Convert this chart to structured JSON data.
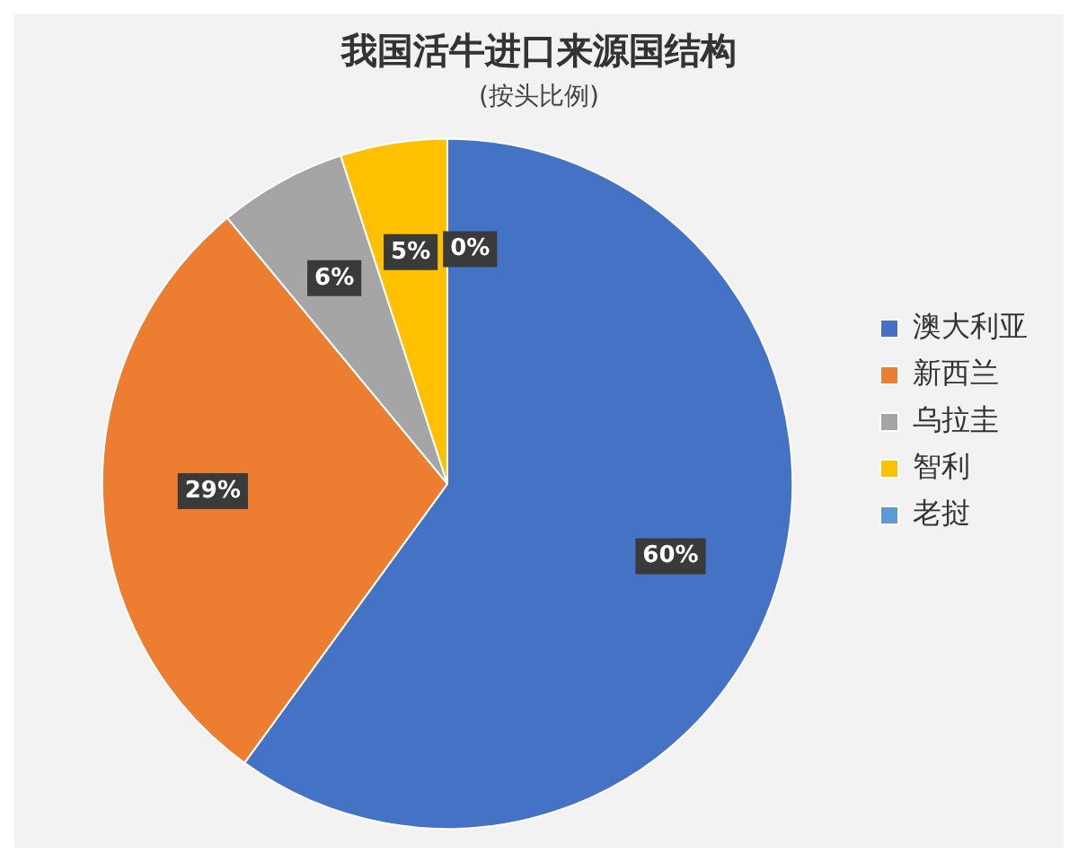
{
  "chart_data": {
    "type": "pie",
    "title": "我国活牛进口来源国结构",
    "subtitle": "(按头比例)",
    "categories": [
      "澳大利亚",
      "新西兰",
      "乌拉圭",
      "智利",
      "老挝"
    ],
    "values": [
      60,
      29,
      6,
      5,
      0
    ],
    "colors": [
      "#4472c4",
      "#ed7d31",
      "#a5a5a5",
      "#ffc000",
      "#5b9bd5"
    ],
    "value_labels": [
      "60%",
      "29%",
      "6%",
      "5%",
      "0%"
    ],
    "legend": "right"
  }
}
